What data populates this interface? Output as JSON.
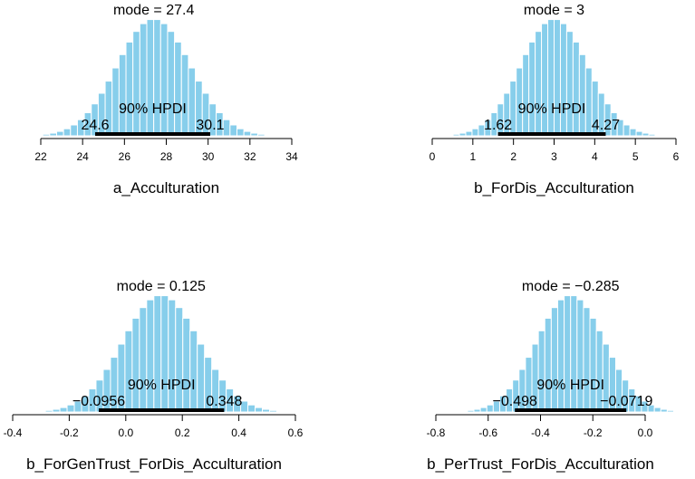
{
  "colors": {
    "bar_fill": "#87ceeb",
    "bar_stroke": "#ffffff",
    "hpdi_line": "#000000",
    "axis": "#000000"
  },
  "chart_data": [
    {
      "type": "bar",
      "variable": "a_Acculturation",
      "mode_label": "mode = 27.4",
      "mode": 27.4,
      "hpdi_label": "90% HPDI",
      "hpdi": [
        24.6,
        30.1
      ],
      "hpdi_low_label": "24.6",
      "hpdi_high_label": "30.1",
      "xlim": [
        22,
        34
      ],
      "xticks": [
        22,
        24,
        26,
        28,
        30,
        32,
        34
      ],
      "xtick_labels": [
        "22",
        "24",
        "26",
        "28",
        "30",
        "32",
        "34"
      ],
      "sd": 1.75
    },
    {
      "type": "bar",
      "variable": "b_ForDis_Acculturation",
      "mode_label": "mode = 3",
      "mode": 3,
      "hpdi_label": "90% HPDI",
      "hpdi": [
        1.62,
        4.27
      ],
      "hpdi_low_label": "1.62",
      "hpdi_high_label": "4.27",
      "xlim": [
        0,
        6
      ],
      "xticks": [
        0,
        1,
        2,
        3,
        4,
        5,
        6
      ],
      "xtick_labels": [
        "0",
        "1",
        "2",
        "3",
        "4",
        "5",
        "6"
      ],
      "sd": 0.82
    },
    {
      "type": "bar",
      "variable": "b_ForGenTrust_ForDis_Acculturation",
      "mode_label": "mode = 0.125",
      "mode": 0.125,
      "hpdi_label": "90% HPDI",
      "hpdi": [
        -0.0956,
        0.348
      ],
      "hpdi_low_label": "−0.0956",
      "hpdi_high_label": "0.348",
      "xlim": [
        -0.4,
        0.6
      ],
      "xticks": [
        -0.4,
        -0.2,
        0.0,
        0.2,
        0.4,
        0.6
      ],
      "xtick_labels": [
        "-0.4",
        "-0.2",
        "0.0",
        "0.2",
        "0.4",
        "0.6"
      ],
      "sd": 0.135
    },
    {
      "type": "bar",
      "variable": "b_PerTrust_ForDis_Acculturation",
      "mode_label": "mode = −0.285",
      "mode": -0.285,
      "hpdi_label": "90% HPDI",
      "hpdi": [
        -0.498,
        -0.0719
      ],
      "hpdi_low_label": "−0.498",
      "hpdi_high_label": "−0.0719",
      "xlim": [
        -0.8,
        0.0
      ],
      "xticks": [
        -0.8,
        -0.6,
        -0.4,
        -0.2,
        0.0
      ],
      "xtick_labels": [
        "-0.8",
        "-0.6",
        "-0.4",
        "-0.2",
        "0.0"
      ],
      "sd": 0.13
    }
  ]
}
